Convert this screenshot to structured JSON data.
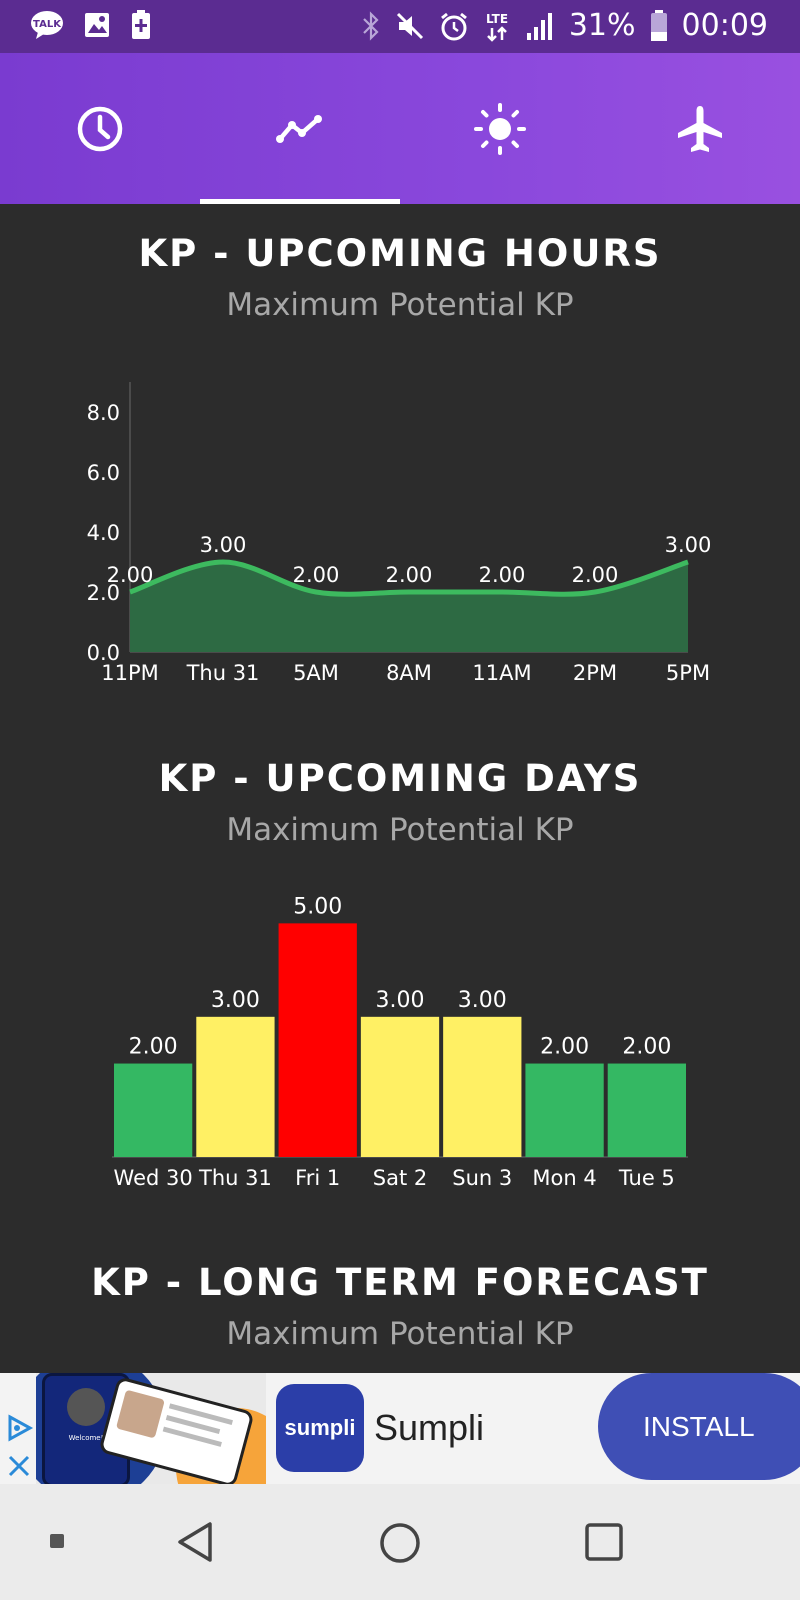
{
  "status_bar": {
    "left_icons": [
      "talk-icon",
      "image-icon",
      "battery-saver-icon"
    ],
    "talk_label": "TALK",
    "right_icons": [
      "bluetooth-icon",
      "mute-icon",
      "alarm-icon",
      "lte-icon",
      "signal-icon"
    ],
    "lte_label": "LTE",
    "battery_percent": "31%",
    "time": "00:09"
  },
  "tabs": [
    {
      "icon": "clock-icon",
      "selected": false
    },
    {
      "icon": "chart-line-icon",
      "selected": true
    },
    {
      "icon": "sun-icon",
      "selected": false
    },
    {
      "icon": "airplane-icon",
      "selected": false
    }
  ],
  "sections": {
    "hours": {
      "title": "KP - UPCOMING HOURS",
      "subtitle": "Maximum Potential KP"
    },
    "days": {
      "title": "KP - UPCOMING DAYS",
      "subtitle": "Maximum Potential KP"
    },
    "long_term": {
      "title": "KP - LONG TERM FORECAST",
      "subtitle": "Maximum Potential KP"
    }
  },
  "chart_data": [
    {
      "type": "area",
      "categories": [
        "11PM",
        "Thu 31",
        "5AM",
        "8AM",
        "11AM",
        "2PM",
        "5PM"
      ],
      "values": [
        2.0,
        3.0,
        2.0,
        2.0,
        2.0,
        2.0,
        3.0
      ],
      "data_labels": [
        "2.00",
        "3.00",
        "2.00",
        "2.00",
        "2.00",
        "2.00",
        "3.00"
      ],
      "y_ticks": [
        "0.0",
        "2.0",
        "4.0",
        "6.0",
        "8.0"
      ],
      "ylim": [
        0,
        9
      ],
      "colors": {
        "line": "#3dba5f",
        "fill": "#2d6a43"
      }
    },
    {
      "type": "bar",
      "categories": [
        "Wed 30",
        "Thu 31",
        "Fri 1",
        "Sat 2",
        "Sun 3",
        "Mon 4",
        "Tue 5"
      ],
      "values": [
        2.0,
        3.0,
        5.0,
        3.0,
        3.0,
        2.0,
        2.0
      ],
      "data_labels": [
        "2.00",
        "3.00",
        "5.00",
        "3.00",
        "3.00",
        "2.00",
        "2.00"
      ],
      "colors": [
        "#34b863",
        "#fff064",
        "#ff0000",
        "#fff064",
        "#fff064",
        "#34b863",
        "#34b863"
      ],
      "ylim": [
        0,
        5.5
      ]
    }
  ],
  "ad": {
    "app_name": "Sumpli",
    "logo_text": "sumpli",
    "install_label": "INSTALL",
    "phone_text": "Welcome!",
    "colors": {
      "install": "#3f4fb5",
      "logo": "#2b3ea8"
    }
  },
  "nav_bar": [
    "recent-dot-icon",
    "back-icon",
    "home-icon",
    "overview-icon"
  ]
}
